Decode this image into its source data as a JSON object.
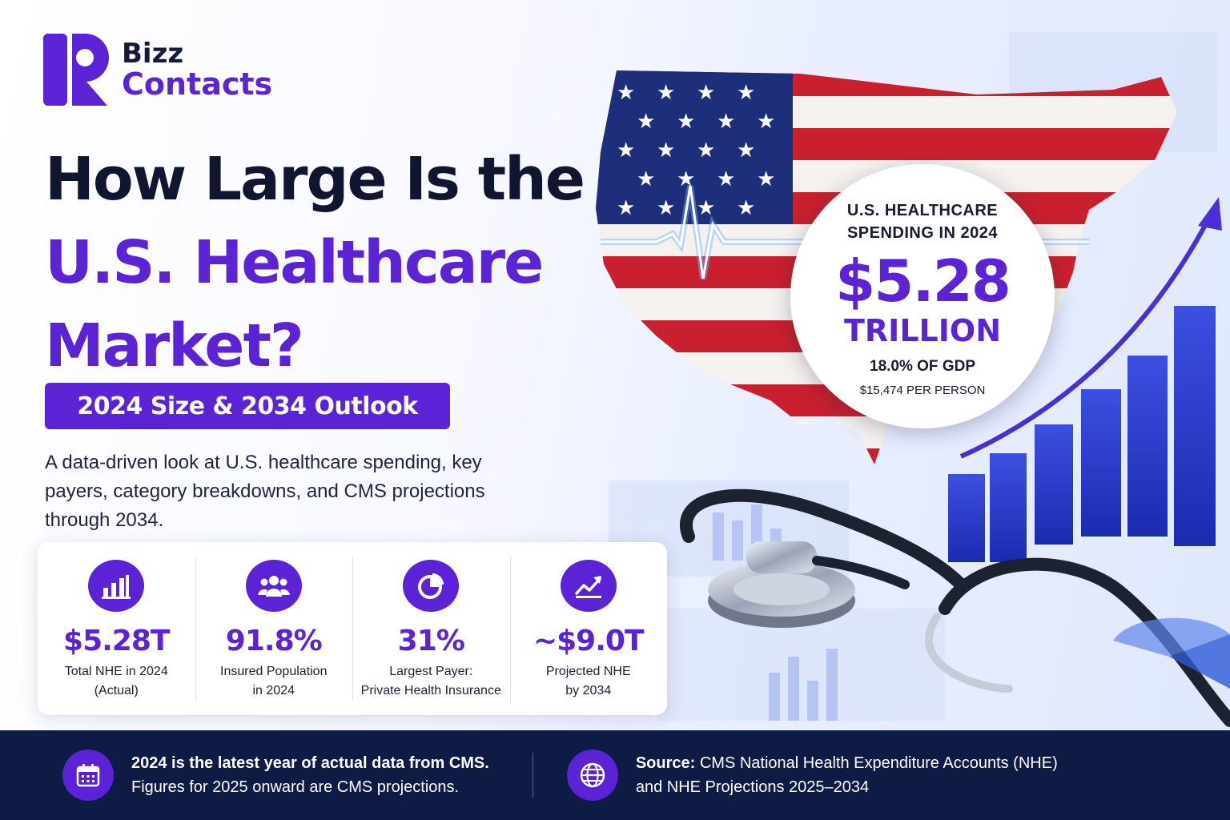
{
  "brand": {
    "name_line1": "Bizz",
    "name_line2": "Contacts",
    "color_primary": "#5b22d6",
    "color_dark": "#141a3a"
  },
  "headline": {
    "line1": "How Large Is the",
    "line2": "U.S. Healthcare",
    "line3": "Market?"
  },
  "subtitle": "2024 Size & 2034 Outlook",
  "intro": "A data-driven look at U.S. healthcare spending, key payers, category breakdowns, and CMS projections through 2034.",
  "spending_callout": {
    "heading": "U.S. HEALTHCARE SPENDING IN 2024",
    "amount": "$5.28",
    "unit": "TRILLION",
    "gdp": "18.0% OF GDP",
    "per_person": "$15,474 PER PERSON"
  },
  "stats": [
    {
      "icon": "bar-chart-icon",
      "value": "$5.28T",
      "label_line1": "Total NHE in 2024",
      "label_line2": "(Actual)"
    },
    {
      "icon": "people-group-icon",
      "value": "91.8%",
      "label_line1": "Insured Population",
      "label_line2": "in 2024"
    },
    {
      "icon": "pie-chart-icon",
      "value": "31%",
      "label_line1": "Largest Payer:",
      "label_line2": "Private Health Insurance"
    },
    {
      "icon": "trend-line-icon",
      "value": "~$9.0T",
      "label_line1": "Projected NHE",
      "label_line2": "by 2034"
    }
  ],
  "footer": {
    "note_bold": "2024 is the latest year of actual data from CMS.",
    "note_text": "Figures for 2025 onward are CMS projections.",
    "source_label": "Source:",
    "source_line1": "CMS National Health Expenditure Accounts (NHE)",
    "source_line2": "and NHE Projections 2025–2034",
    "note_icon": "calendar-icon",
    "source_icon": "globe-icon",
    "background": "#0e1b44"
  },
  "illustration": {
    "map": "us-flag-map",
    "objects": [
      "heartbeat-line",
      "stethoscope",
      "rising-bar-chart",
      "growth-arrow"
    ]
  }
}
